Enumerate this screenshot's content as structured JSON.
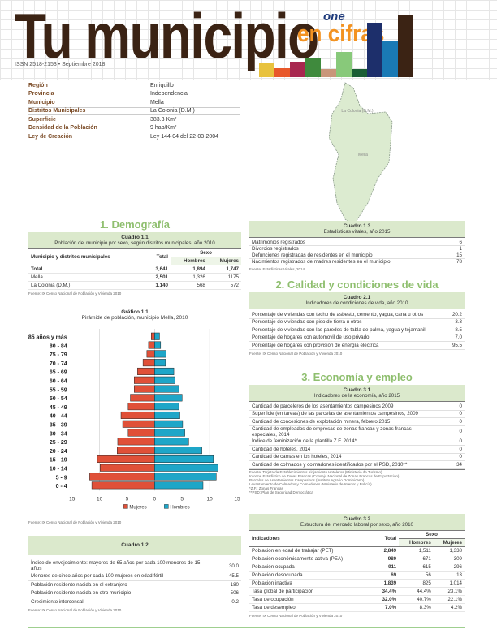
{
  "header": {
    "title": "Tu municipio",
    "subtitle": "en cifras",
    "issn": "ISSN 2518-2153  •  Septiembre 2018",
    "logo": "one",
    "bar_colors": [
      "#e8c23e",
      "#e8582a",
      "#a8274f",
      "#3f8a3d",
      "#c9967a",
      "#88c97a",
      "#1a5e34",
      "#1d2f6b",
      "#1a7ab5",
      "#3b2314"
    ]
  },
  "info": [
    {
      "label": "Región",
      "value": "Enriquillo"
    },
    {
      "label": "Provincia",
      "value": "Independencia"
    },
    {
      "label": "Municipio",
      "value": "Mella"
    },
    {
      "label": "Distritos Municipales",
      "value": "La Colonia (D.M.)"
    },
    {
      "label": "Superficie",
      "value": "383.3 Km²"
    },
    {
      "label": "Densidad de la Población",
      "value": "9 hab/Km²"
    },
    {
      "label": "Ley de Creación",
      "value": "Ley 144-04 del 22-03-2004"
    }
  ],
  "map": {
    "labels": [
      "La Colonia (D.M.)",
      "Mella"
    ],
    "fill": "#dcebd0"
  },
  "demografia": {
    "heading": "1. Demografía",
    "c11": {
      "title": "Cuadro 1.1",
      "subtitle": "Población del municipio por sexo, según distritos municipales, año 2010",
      "col1": "Municipio y distritos municipales",
      "col_total": "Total",
      "col_sexo": "Sexo",
      "col_h": "Hombres",
      "col_m": "Mujeres",
      "rows": [
        {
          "name": "Total",
          "total": "3,641",
          "h": "1,894",
          "m": "1,747"
        },
        {
          "name": "Mella",
          "total": "2,501",
          "h": "1,326",
          "m": "1175"
        },
        {
          "name": "La Colonia (D.M.)",
          "total": "1.140",
          "h": "568",
          "m": "572"
        }
      ],
      "source": "Fuente: IX Censo Nacional de Población y Vivienda 2010"
    },
    "chart_source": "Fuente: IX Censo Nacional de Población y Vivienda 2010",
    "c12": {
      "title": "Cuadro 1.2",
      "rows": [
        {
          "label": "Índice de envejecimiento: mayores de 65 años por cada 100 menores de 15 años",
          "value": "30.0"
        },
        {
          "label": "Menores de cinco años por cada 100 mujeres en edad fértil",
          "value": "45.5"
        },
        {
          "label": "Población residente nacida en el extranjero",
          "value": "180"
        },
        {
          "label": "Población residente nacida en otro municipio",
          "value": "506"
        },
        {
          "label": "Crecimiento intercensal",
          "value": "0.2"
        }
      ],
      "source": "Fuente: IX Censo Nacional de Población y Vivienda 2010"
    }
  },
  "chart_data": {
    "type": "bar",
    "orientation": "horizontal-pyramid",
    "title": "Gráfico 1.1",
    "subtitle": "Pirámide de población, municipio Mella, 2010",
    "categories": [
      "85 años y más",
      "80 - 84",
      "75 - 79",
      "70 - 74",
      "65 - 69",
      "60 - 64",
      "55 - 59",
      "50 - 54",
      "45 - 49",
      "40 - 44",
      "35 - 39",
      "30 - 34",
      "25 - 29",
      "20 - 24",
      "15 - 19",
      "10 - 14",
      "5 - 9",
      "0 - 4"
    ],
    "series": [
      {
        "name": "Mujeres",
        "color": "#e05038",
        "values": [
          0.6,
          1.1,
          1.4,
          2.1,
          3.1,
          3.7,
          3.7,
          4.4,
          4.8,
          6.1,
          5.8,
          4.8,
          6.7,
          6.8,
          10.4,
          9.9,
          11.8,
          11.4
        ]
      },
      {
        "name": "Hombres",
        "color": "#1ea6c8",
        "values": [
          0.9,
          1.1,
          2.1,
          2.0,
          3.5,
          3.7,
          4.4,
          5.0,
          4.4,
          4.6,
          5.1,
          5.5,
          6.2,
          8.6,
          10.7,
          11.5,
          11.2,
          8.8
        ]
      }
    ],
    "xticks": [
      "15",
      "10",
      "5",
      "0",
      "5",
      "10",
      "15"
    ],
    "xlim": [
      -15,
      15
    ],
    "legend": "bottom"
  },
  "vitales": {
    "title": "Cuadro 1.3",
    "subtitle": "Estadísticas vitales, año 2015",
    "rows": [
      {
        "label": "Matrimonios registrados",
        "value": "6"
      },
      {
        "label": "Divorcios registrados",
        "value": "1"
      },
      {
        "label": "Defunciones registradas de residentes en el municipio",
        "value": "15"
      },
      {
        "label": "Nacimientos registrados de madres residentes en el municipio",
        "value": "78"
      }
    ],
    "source": "Fuente: Estadísticas Vitales, 2014"
  },
  "calidad": {
    "heading": "2. Calidad y condiciones de vida",
    "title": "Cuadro 2.1",
    "subtitle": "Indicadores de condiciones de vida, año 2010",
    "rows": [
      {
        "label": "Porcentaje de viviendas con techo de asbesto, cemento, yagua, cana u otros",
        "value": "20.2"
      },
      {
        "label": "Porcentaje de viviendas con piso de tierra u otros",
        "value": "3.3"
      },
      {
        "label": "Porcentaje de viviendas con las paredes de tabla de palma, yagua y tejamanil",
        "value": "8.5"
      },
      {
        "label": "Porcentaje de hogares con automovil de uso privado",
        "value": "7.0"
      },
      {
        "label": "Porcentaje de hogares con provisión de energía eléctrica",
        "value": "95.5"
      }
    ],
    "source": "Fuente: IX Censo Nacional de Población y Vivienda 2010"
  },
  "economia": {
    "heading": "3. Economía y empleo",
    "title": "Cuadro 3.1",
    "subtitle": "Indicadores de la economía, año 2015",
    "rows": [
      {
        "label": "Cantidad de parceleros de los asentamientos campesinos 2009",
        "value": "0"
      },
      {
        "label": "Superficie (en tareas) de las parcelas de asentamientos campesinos, 2009",
        "value": "0"
      },
      {
        "label": "Cantidad de concesiones de explotación minera, febrero 2015",
        "value": "0"
      },
      {
        "label": "Cantidad de empleados de empresas de zonas francas y zonas francas especiales, 2014",
        "value": "0"
      },
      {
        "label": "Índice de feminización de la plantilla Z.F. 2014*",
        "value": "0"
      },
      {
        "label": "Cantidad de hoteles, 2014",
        "value": "0"
      },
      {
        "label": "Cantidad de camas en los hoteles, 2014",
        "value": "0"
      },
      {
        "label": "Cantidad de colmados y colmadones identificados por el PSD, 2010**",
        "value": "34"
      }
    ],
    "notes": [
      "Fuente: Tarjeta de Establecimientos Alojamiento Hoteleros (Ministerio de Turismo)",
      "Informe Estadístico de Zonas Francas (Consejo Nacional de Zonas Francas de Exportación)",
      "Parcelas de Asentamientos Campesinos (Instituto Agrario Dominicano)",
      "Levantamiento de Colmados y Colmadones (Ministerio de Interior y Policía)",
      "*Z.F.: Zonas Francas",
      "**PSD: Plan de Seguridad Democrática"
    ]
  },
  "mercado": {
    "title": "Cuadro 3.2",
    "subtitle": "Estructura del mercado laboral por sexo, año 2010",
    "col1": "Indicadores",
    "col_total": "Total",
    "col_sexo": "Sexo",
    "col_h": "Hombres",
    "col_m": "Mujeres",
    "rows": [
      {
        "name": "Población en edad de trabajar (PET)",
        "total": "2,849",
        "h": "1,511",
        "m": "1,338"
      },
      {
        "name": "Población económicamente activa (PEA)",
        "total": "980",
        "h": "671",
        "m": "309"
      },
      {
        "name": "Población ocupada",
        "total": "911",
        "h": "615",
        "m": "296"
      },
      {
        "name": "Población desocupada",
        "total": "69",
        "h": "56",
        "m": "13"
      },
      {
        "name": "Población inactiva",
        "total": "1,839",
        "h": "825",
        "m": "1,014"
      },
      {
        "name": "Tasa global de participación",
        "total": "34.4%",
        "h": "44.4%",
        "m": "23.1%"
      },
      {
        "name": "Tasa de ocupación",
        "total": "32.0%",
        "h": "40.7%",
        "m": "22.1%"
      },
      {
        "name": "Tasa de desempleo",
        "total": "7.0%",
        "h": "8.3%",
        "m": "4.2%"
      }
    ],
    "source": "Fuente: IX Censo Nacional de Población y Vivienda 2010"
  }
}
